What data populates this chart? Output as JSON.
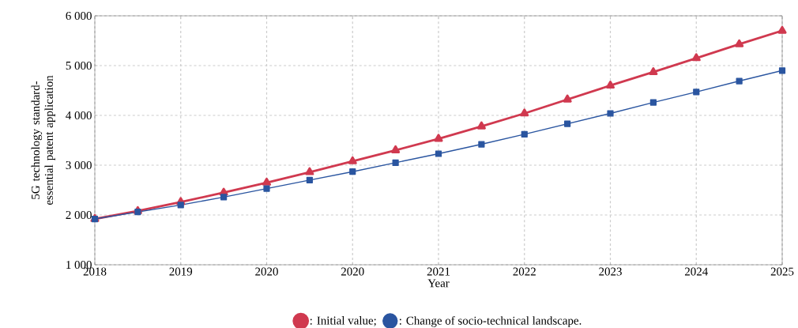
{
  "chart_data": {
    "type": "line",
    "xlabel": "Year",
    "ylabel": "5G technology standard-essential patent application",
    "categories": [
      "2018",
      null,
      "2019",
      null,
      "2020",
      null,
      "2020",
      null,
      "2021",
      null,
      "2022",
      null,
      "2023",
      null,
      "2024",
      null,
      "2025"
    ],
    "series": [
      {
        "name": ": Initial value;",
        "color": "#d0394f",
        "marker": "triangle",
        "values": [
          1920,
          2080,
          2260,
          2450,
          2650,
          2860,
          3080,
          3300,
          3530,
          3780,
          4040,
          4320,
          4600,
          4870,
          5150,
          5430,
          5700
        ]
      },
      {
        "name": ": Change of socio-technical landscape.",
        "color": "#2a55a0",
        "marker": "square",
        "values": [
          1920,
          2060,
          2200,
          2360,
          2530,
          2700,
          2870,
          3050,
          3230,
          3420,
          3620,
          3830,
          4040,
          4260,
          4470,
          4690,
          4900
        ]
      }
    ],
    "ylim": [
      1000,
      6000
    ],
    "yticks": [
      {
        "value": 1000,
        "label": "1 000"
      },
      {
        "value": 2000,
        "label": "2 000"
      },
      {
        "value": 3000,
        "label": "3 000"
      },
      {
        "value": 4000,
        "label": "4 000"
      },
      {
        "value": 5000,
        "label": "5 000"
      },
      {
        "value": 6000,
        "label": "6 000"
      }
    ],
    "grid": true,
    "legend": "bottom",
    "line_style": "solid"
  }
}
